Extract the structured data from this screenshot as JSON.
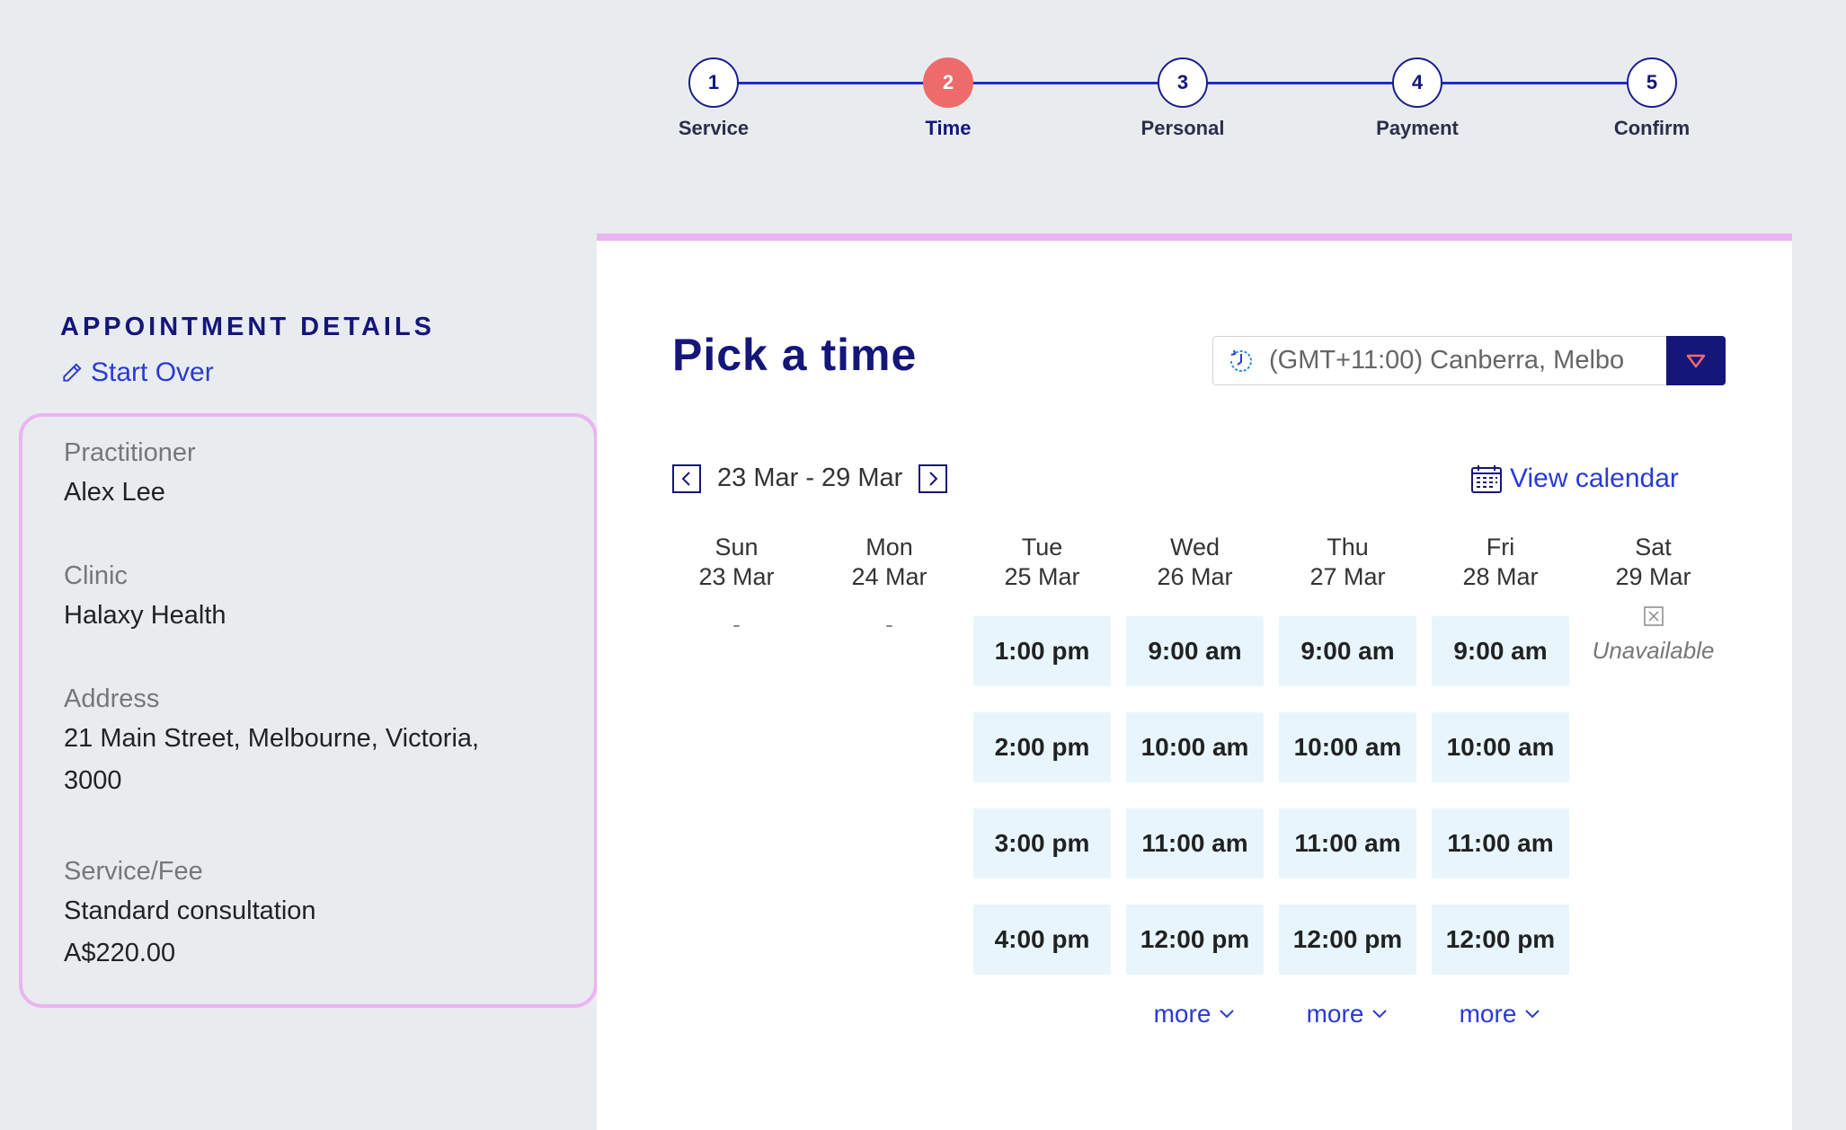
{
  "stepper": {
    "steps": [
      {
        "num": "1",
        "label": "Service"
      },
      {
        "num": "2",
        "label": "Time"
      },
      {
        "num": "3",
        "label": "Personal"
      },
      {
        "num": "4",
        "label": "Payment"
      },
      {
        "num": "5",
        "label": "Confirm"
      }
    ],
    "active_step": 2
  },
  "details": {
    "heading": "APPOINTMENT DETAILS",
    "start_over": "Start Over",
    "practitioner_label": "Practitioner",
    "practitioner": "Alex Lee",
    "clinic_label": "Clinic",
    "clinic": "Halaxy Health",
    "address_label": "Address",
    "address_line1": "21 Main Street, Melbourne, Victoria,",
    "address_line2": "3000",
    "service_label": "Service/Fee",
    "service": "Standard consultation",
    "fee": "A$220.00"
  },
  "main": {
    "title": "Pick a time",
    "timezone": "(GMT+11:00) Canberra, Melbo",
    "week_range": "23 Mar - 29 Mar",
    "view_calendar": "View calendar",
    "days": [
      {
        "dow": "Sun",
        "date": "23 Mar",
        "empty": "-"
      },
      {
        "dow": "Mon",
        "date": "24 Mar",
        "empty": "-"
      },
      {
        "dow": "Tue",
        "date": "25 Mar",
        "slots": [
          "1:00 pm",
          "2:00 pm",
          "3:00 pm",
          "4:00 pm"
        ]
      },
      {
        "dow": "Wed",
        "date": "26 Mar",
        "slots": [
          "9:00 am",
          "10:00 am",
          "11:00 am",
          "12:00 pm"
        ],
        "more": "more"
      },
      {
        "dow": "Thu",
        "date": "27 Mar",
        "slots": [
          "9:00 am",
          "10:00 am",
          "11:00 am",
          "12:00 pm"
        ],
        "more": "more"
      },
      {
        "dow": "Fri",
        "date": "28 Mar",
        "slots": [
          "9:00 am",
          "10:00 am",
          "11:00 am",
          "12:00 pm"
        ],
        "more": "more"
      },
      {
        "dow": "Sat",
        "date": "29 Mar",
        "unavailable": "Unavailable"
      }
    ]
  },
  "colors": {
    "navy": "#14167a",
    "accent_red": "#ee6b6b",
    "link_blue": "#2a3ad6",
    "pink_border": "#ebb4f2",
    "slot_bg": "#e8f5fd"
  }
}
